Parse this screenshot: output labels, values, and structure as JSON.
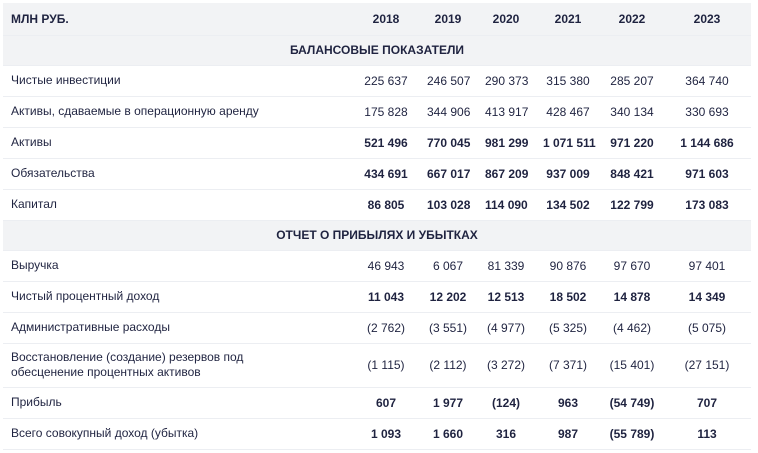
{
  "header": {
    "unit": "МЛН РУБ.",
    "years": [
      "2018",
      "2019",
      "2020",
      "2021",
      "2022",
      "2023"
    ]
  },
  "sections": [
    {
      "title": "БАЛАНСОВЫЕ ПОКАЗАТЕЛИ",
      "rows": [
        {
          "label": "Чистые инвестиции",
          "bold": false,
          "values": [
            "225 637",
            "246 507",
            "290 373",
            "315 380",
            "285 207",
            "364 740"
          ]
        },
        {
          "label": "Активы, сдаваемые в операционную аренду",
          "bold": false,
          "values": [
            "175 828",
            "344 906",
            "413 917",
            "428 467",
            "340 134",
            "330 693"
          ]
        },
        {
          "label": "Активы",
          "bold": true,
          "values": [
            "521 496",
            "770 045",
            "981 299",
            "1 071 511",
            "971 220",
            "1 144 686"
          ]
        },
        {
          "label": "Обязательства",
          "bold": true,
          "values": [
            "434 691",
            "667 017",
            "867 209",
            "937 009",
            "848 421",
            "971 603"
          ]
        },
        {
          "label": "Капитал",
          "bold": true,
          "values": [
            "86 805",
            "103 028",
            "114 090",
            "134 502",
            "122 799",
            "173 083"
          ]
        }
      ]
    },
    {
      "title": "ОТЧЕТ О ПРИБЫЛЯХ И УБЫТКАХ",
      "rows": [
        {
          "label": "Выручка",
          "bold": false,
          "values": [
            "46 943",
            "6 067",
            "81 339",
            "90 876",
            "97 670",
            "97 401"
          ]
        },
        {
          "label": "Чистый процентный доход",
          "bold": true,
          "values": [
            "11 043",
            "12 202",
            "12 513",
            "18 502",
            "14 878",
            "14 349"
          ]
        },
        {
          "label": "Административные расходы",
          "bold": false,
          "values": [
            "(2 762)",
            "(3 551)",
            "(4 977)",
            "(5 325)",
            "(4 462)",
            "(5 075)"
          ]
        },
        {
          "label": "Восстановление (создание) резервов под обесценение процентных активов",
          "bold": false,
          "tall": true,
          "values": [
            "(1 115)",
            "(2 112)",
            "(3 272)",
            "(7 371)",
            "(15 401)",
            "(27 151)"
          ]
        },
        {
          "label": "Прибыль",
          "bold": true,
          "values": [
            "607",
            "1 977",
            "(124)",
            "963",
            "(54 749)",
            "707"
          ]
        },
        {
          "label": "Всего совокупный доход (убытка)",
          "bold": true,
          "values": [
            "1 093",
            "1 660",
            "316",
            "987",
            "(55 789)",
            "113"
          ]
        }
      ]
    }
  ]
}
